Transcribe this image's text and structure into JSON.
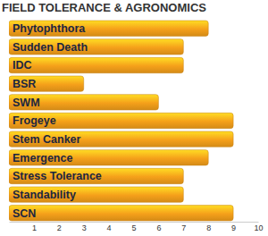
{
  "chart_data": {
    "type": "bar",
    "title": "FIELD TOLERANCE & AGRONOMICS",
    "orientation": "horizontal",
    "categories": [
      "Phytophthora",
      "Sudden Death",
      "IDC",
      "BSR",
      "SWM",
      "Frogeye",
      "Stem Canker",
      "Emergence",
      "Stress Tolerance",
      "Standability",
      "SCN"
    ],
    "values": [
      8,
      7,
      7,
      3,
      6,
      9,
      9,
      8,
      7,
      7,
      9
    ],
    "color": "#f5a01a",
    "xlim": [
      0,
      10
    ],
    "xticks": [
      1,
      2,
      3,
      4,
      5,
      6,
      7,
      8,
      9,
      10
    ],
    "grid": false
  }
}
